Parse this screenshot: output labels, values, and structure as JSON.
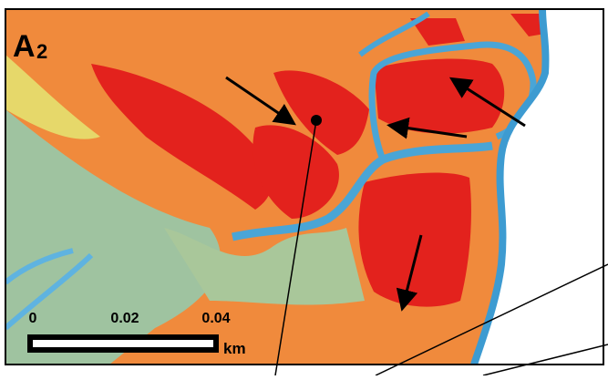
{
  "panel": {
    "label": "A",
    "subscript": "2"
  },
  "scale_bar": {
    "ticks": [
      "0",
      "0.02",
      "0.04"
    ],
    "unit": "km"
  }
}
